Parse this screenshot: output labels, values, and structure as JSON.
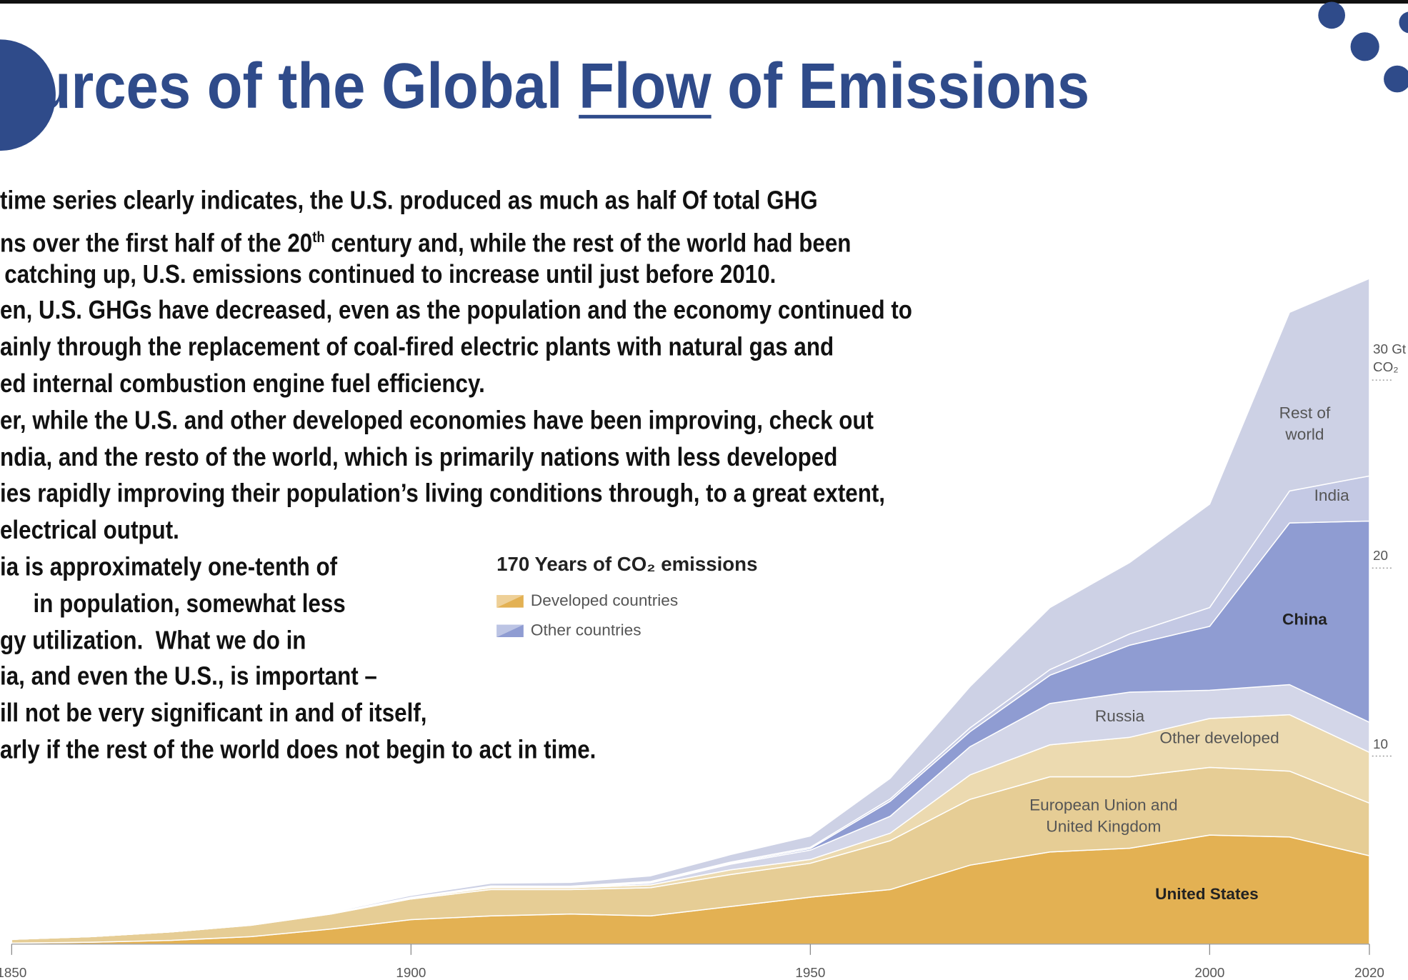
{
  "slide": {
    "title_before": "ources of the Global ",
    "title_underlined": "Flow",
    "title_after": " of Emissions",
    "body_lines": [
      "time series clearly indicates, the U.S. produced as much as half Of total GHG",
      {
        "before": "ns over the first half of the 20",
        "sup": "th",
        "after": " century and, while the rest of the world had been"
      },
      "catching up, U.S. emissions continued to increase until just before 2010.",
      "en, U.S. GHGs have decreased, even as the population and the economy continued to",
      "ainly through the replacement of coal-fired electric plants with natural gas and",
      "ed internal combustion engine fuel efficiency.",
      "er, while the U.S. and other developed economies have been improving, check out",
      "ndia, and the resto of the world, which is primarily nations with less developed",
      "ies rapidly improving their population’s living conditions through, to a great extent,",
      "electrical output.",
      "ia is approximately one-tenth of",
      "in population, somewhat less",
      "gy utilization.  What we do in",
      "ia, and even the U.S., is important –",
      "ill not be very significant in and of itself,",
      "arly if the rest of the world does not begin to act in time."
    ]
  },
  "chart_data": {
    "type": "stacked_area",
    "title": "170 Years of CO₂ emissions",
    "legend": [
      {
        "label": "Developed countries",
        "color": "#e3b153"
      },
      {
        "label": "Other countries",
        "color": "#8f9cd2"
      }
    ],
    "x": [
      1850,
      1860,
      1870,
      1880,
      1890,
      1900,
      1910,
      1920,
      1930,
      1940,
      1950,
      1960,
      1970,
      1980,
      1990,
      2000,
      2010,
      2020
    ],
    "xlim": [
      1850,
      2020
    ],
    "xticks": [
      1850,
      1900,
      1950,
      2000,
      2020
    ],
    "ylim": [
      0,
      40
    ],
    "yticks": [
      10,
      20,
      {
        "value": 30,
        "label": "30 Gt CO₂"
      }
    ],
    "series": [
      {
        "name": "United States",
        "color": "#e3b153",
        "values": [
          0.05,
          0.1,
          0.2,
          0.4,
          0.8,
          1.3,
          1.5,
          1.6,
          1.5,
          2.0,
          2.5,
          2.9,
          4.2,
          4.9,
          5.1,
          5.8,
          5.7,
          4.7
        ]
      },
      {
        "name": "European Union and United Kingdom",
        "color": "#e6cd95",
        "values": [
          0.2,
          0.3,
          0.45,
          0.6,
          0.8,
          1.1,
          1.4,
          1.3,
          1.5,
          1.7,
          1.8,
          2.6,
          3.5,
          4.0,
          3.8,
          3.6,
          3.5,
          2.8
        ]
      },
      {
        "name": "Other developed",
        "color": "#ecdab0",
        "values": [
          0,
          0,
          0,
          0.01,
          0.02,
          0.05,
          0.1,
          0.1,
          0.15,
          0.25,
          0.2,
          0.4,
          1.3,
          1.7,
          2.1,
          2.6,
          3.0,
          2.7
        ]
      },
      {
        "name": "Russia",
        "color": "#d3d6e8",
        "values": [
          0,
          0,
          0,
          0,
          0.01,
          0.02,
          0.05,
          0.02,
          0.1,
          0.3,
          0.5,
          0.9,
          1.5,
          2.2,
          2.4,
          1.5,
          1.6,
          1.6
        ]
      },
      {
        "name": "China",
        "color": "#8f9cd2",
        "values": [
          0,
          0,
          0,
          0,
          0,
          0,
          0.01,
          0.02,
          0.03,
          0.05,
          0.08,
          0.8,
          0.8,
          1.5,
          2.5,
          3.4,
          8.6,
          10.7
        ]
      },
      {
        "name": "India",
        "color": "#c4c9e4",
        "values": [
          0,
          0,
          0,
          0,
          0.01,
          0.02,
          0.03,
          0.04,
          0.05,
          0.06,
          0.07,
          0.12,
          0.2,
          0.3,
          0.6,
          1.0,
          1.7,
          2.4
        ]
      },
      {
        "name": "Rest of world",
        "color": "#cdd1e5",
        "values": [
          0.01,
          0.01,
          0.02,
          0.03,
          0.05,
          0.1,
          0.15,
          0.2,
          0.3,
          0.4,
          0.6,
          1.1,
          2.2,
          3.3,
          3.8,
          5.5,
          9.5,
          10.5
        ]
      }
    ]
  }
}
